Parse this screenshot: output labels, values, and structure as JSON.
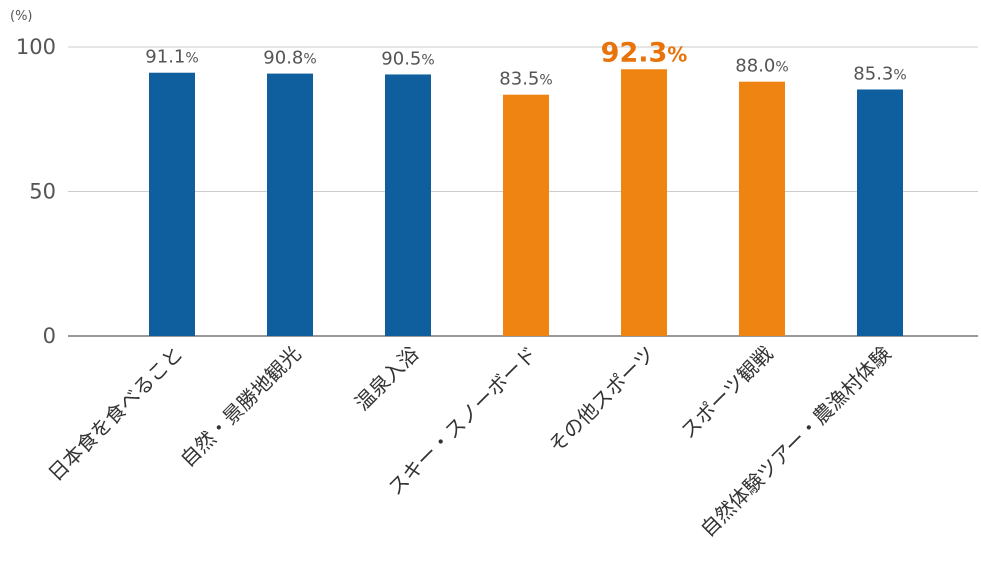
{
  "chart_data": {
    "type": "bar",
    "unit": "(%)",
    "categories": [
      "日本食を食べること",
      "自然・景勝地観光",
      "温泉入浴",
      "スキー・スノーボード",
      "その他スポーツ",
      "スポーツ観戦",
      "自然体験ツアー・農漁村体験"
    ],
    "values": [
      91.1,
      90.8,
      90.5,
      83.5,
      92.3,
      88.0,
      85.3
    ],
    "value_labels": [
      "91.1",
      "90.8",
      "90.5",
      "83.5",
      "92.3",
      "88.0",
      "85.3"
    ],
    "value_suffix": "%",
    "highlight_index": 4,
    "groups": [
      "blue",
      "blue",
      "blue",
      "orange",
      "orange",
      "orange",
      "blue"
    ],
    "colors": {
      "blue": "#0f5f9e",
      "orange": "#ef8412",
      "orange_text": "#e8730a",
      "grid": "#cccccc",
      "axis": "#999999"
    },
    "ylim": [
      0,
      100
    ],
    "yticks": [
      0,
      50,
      100
    ],
    "grid": true
  }
}
